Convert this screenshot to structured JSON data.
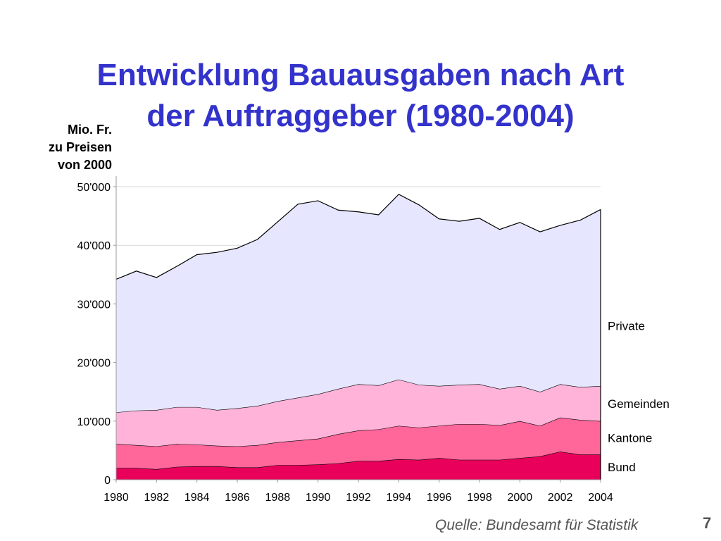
{
  "slide": {
    "title_line1": "Entwicklung Bauausgaben nach Art",
    "title_line2": "der Auftraggeber (1980-2004)",
    "unit_line1": "Mio. Fr.",
    "unit_line2": "zu Preisen",
    "unit_line3": "von 2000",
    "source": "Quelle: Bundesamt für Statistik",
    "page_number": "7"
  },
  "chart_data": {
    "type": "area",
    "stacked": true,
    "title": "Entwicklung Bauausgaben nach Art der Auftraggeber (1980-2004)",
    "ylabel": "Mio. Fr. zu Preisen von 2000",
    "xlabel": "",
    "x": [
      1980,
      1981,
      1982,
      1983,
      1984,
      1985,
      1986,
      1987,
      1988,
      1989,
      1990,
      1991,
      1992,
      1993,
      1994,
      1995,
      1996,
      1997,
      1998,
      1999,
      2000,
      2001,
      2002,
      2003,
      2004
    ],
    "x_ticks": [
      "1980",
      "1982",
      "1984",
      "1986",
      "1988",
      "1990",
      "1992",
      "1994",
      "1996",
      "1998",
      "2000",
      "2002",
      "2004"
    ],
    "ylim": [
      0,
      50000
    ],
    "y_ticks": [
      "0",
      "10'000",
      "20'000",
      "30'000",
      "40'000",
      "50'000"
    ],
    "grid": true,
    "series": [
      {
        "name": "Bund",
        "color": "#e8005a",
        "values": [
          2000,
          2000,
          1800,
          2200,
          2300,
          2300,
          2100,
          2100,
          2500,
          2500,
          2600,
          2800,
          3200,
          3200,
          3500,
          3400,
          3700,
          3400,
          3400,
          3400,
          3700,
          4000,
          4800,
          4300,
          4300
        ]
      },
      {
        "name": "Kantone",
        "color": "#ff6699",
        "values": [
          4100,
          3900,
          3900,
          3900,
          3700,
          3500,
          3600,
          3800,
          3900,
          4200,
          4400,
          5000,
          5200,
          5400,
          5700,
          5500,
          5500,
          6100,
          6100,
          5900,
          6300,
          5200,
          5800,
          5900,
          5700
        ]
      },
      {
        "name": "Gemeinden",
        "color": "#ffb3d9",
        "values": [
          5400,
          5900,
          6200,
          6300,
          6400,
          6100,
          6500,
          6700,
          7000,
          7300,
          7600,
          7700,
          7900,
          7500,
          7900,
          7300,
          6800,
          6700,
          6800,
          6200,
          6000,
          5800,
          5700,
          5600,
          6000
        ]
      },
      {
        "name": "Private",
        "color": "#e6e6ff",
        "values": [
          22700,
          23800,
          22600,
          24000,
          26000,
          26900,
          27300,
          28400,
          30600,
          33000,
          33000,
          30500,
          29400,
          29100,
          31600,
          30700,
          28500,
          27900,
          28300,
          27200,
          27900,
          27300,
          27100,
          28500,
          30100
        ]
      }
    ]
  }
}
